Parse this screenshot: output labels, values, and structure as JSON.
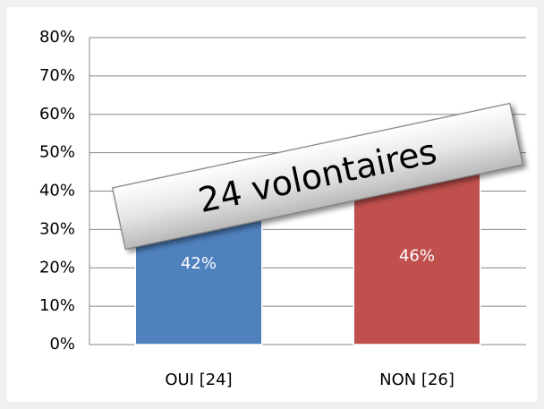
{
  "chart_data": {
    "type": "bar",
    "categories": [
      "OUI [24]",
      "NON [26]"
    ],
    "values": [
      42,
      46
    ],
    "value_labels": [
      "42%",
      "46%"
    ],
    "colors": [
      "#4f81bd",
      "#c0504d"
    ],
    "ylim": [
      0,
      80
    ],
    "yticks": [
      {
        "value": 0,
        "label": "0%"
      },
      {
        "value": 10,
        "label": "10%"
      },
      {
        "value": 20,
        "label": "20%"
      },
      {
        "value": 30,
        "label": "30%"
      },
      {
        "value": 40,
        "label": "40%"
      },
      {
        "value": 50,
        "label": "50%"
      },
      {
        "value": 60,
        "label": "60%"
      },
      {
        "value": 70,
        "label": "70%"
      },
      {
        "value": 80,
        "label": "80%"
      }
    ],
    "grid": true,
    "annotation": "24 volontaires"
  }
}
